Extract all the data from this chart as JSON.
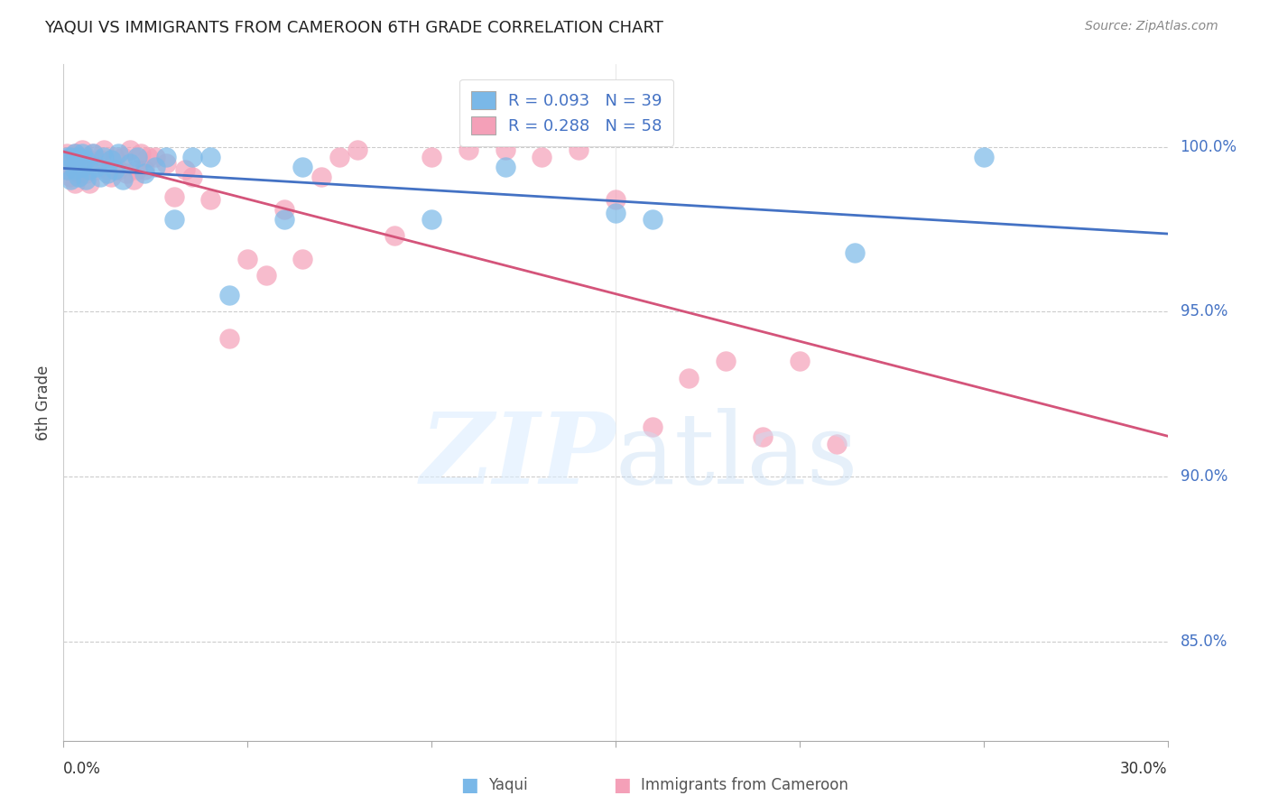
{
  "title": "YAQUI VS IMMIGRANTS FROM CAMEROON 6TH GRADE CORRELATION CHART",
  "source": "Source: ZipAtlas.com",
  "ylabel": "6th Grade",
  "ytick_vals": [
    0.85,
    0.9,
    0.95,
    1.0
  ],
  "ytick_labels": [
    "85.0%",
    "90.0%",
    "95.0%",
    "100.0%"
  ],
  "xlim": [
    0.0,
    0.3
  ],
  "ylim": [
    0.82,
    1.025
  ],
  "legend_yaqui": "R = 0.093   N = 39",
  "legend_cameroon": "R = 0.288   N = 58",
  "yaqui_color": "#7ab8e8",
  "cameroon_color": "#f4a0b8",
  "yaqui_line_color": "#4472c4",
  "cameroon_line_color": "#d4547a",
  "yaqui_x": [
    0.001,
    0.001,
    0.002,
    0.002,
    0.003,
    0.003,
    0.004,
    0.004,
    0.005,
    0.005,
    0.006,
    0.006,
    0.007,
    0.008,
    0.009,
    0.01,
    0.011,
    0.012,
    0.013,
    0.014,
    0.015,
    0.016,
    0.018,
    0.02,
    0.022,
    0.025,
    0.028,
    0.03,
    0.035,
    0.04,
    0.045,
    0.06,
    0.065,
    0.1,
    0.12,
    0.15,
    0.16,
    0.215,
    0.25
  ],
  "yaqui_y": [
    0.997,
    0.993,
    0.997,
    0.99,
    0.998,
    0.993,
    0.997,
    0.991,
    0.998,
    0.994,
    0.996,
    0.99,
    0.993,
    0.998,
    0.994,
    0.991,
    0.997,
    0.992,
    0.996,
    0.993,
    0.998,
    0.99,
    0.995,
    0.997,
    0.992,
    0.994,
    0.997,
    0.978,
    0.997,
    0.997,
    0.955,
    0.978,
    0.994,
    0.978,
    0.994,
    0.98,
    0.978,
    0.968,
    0.997
  ],
  "cameroon_x": [
    0.001,
    0.001,
    0.002,
    0.002,
    0.003,
    0.003,
    0.003,
    0.004,
    0.004,
    0.005,
    0.005,
    0.006,
    0.006,
    0.007,
    0.007,
    0.008,
    0.009,
    0.01,
    0.011,
    0.012,
    0.013,
    0.014,
    0.015,
    0.016,
    0.017,
    0.018,
    0.019,
    0.02,
    0.021,
    0.022,
    0.023,
    0.025,
    0.028,
    0.03,
    0.033,
    0.035,
    0.04,
    0.045,
    0.05,
    0.055,
    0.06,
    0.065,
    0.07,
    0.075,
    0.08,
    0.09,
    0.1,
    0.11,
    0.12,
    0.13,
    0.14,
    0.15,
    0.16,
    0.17,
    0.18,
    0.19,
    0.2,
    0.21
  ],
  "cameroon_y": [
    0.998,
    0.993,
    0.997,
    0.991,
    0.998,
    0.994,
    0.989,
    0.997,
    0.992,
    0.999,
    0.995,
    0.997,
    0.992,
    0.996,
    0.989,
    0.998,
    0.993,
    0.996,
    0.999,
    0.993,
    0.991,
    0.997,
    0.993,
    0.997,
    0.992,
    0.999,
    0.99,
    0.993,
    0.998,
    0.993,
    0.997,
    0.997,
    0.995,
    0.985,
    0.993,
    0.991,
    0.984,
    0.942,
    0.966,
    0.961,
    0.981,
    0.966,
    0.991,
    0.997,
    0.999,
    0.973,
    0.997,
    0.999,
    0.999,
    0.997,
    0.999,
    0.984,
    0.915,
    0.93,
    0.935,
    0.912,
    0.935,
    0.91
  ]
}
